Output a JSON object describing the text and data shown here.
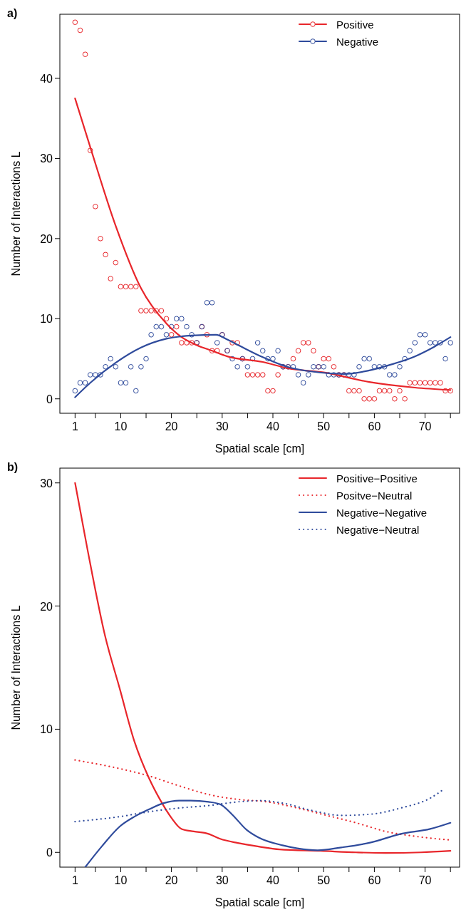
{
  "chart_data": [
    {
      "type": "scatter",
      "title": "a)",
      "xlabel": "Spatial scale [cm]",
      "ylabel": "Number of Interactions L",
      "xlim": [
        -2,
        76.8
      ],
      "ylim": [
        -1.8,
        48
      ],
      "xticks": [
        1,
        {
          "value": 5,
          "label": null
        },
        10,
        {
          "value": 15,
          "label": null
        },
        20,
        {
          "value": 25,
          "label": null
        },
        30,
        {
          "value": 35,
          "label": null
        },
        40,
        {
          "value": 45,
          "label": null
        },
        50,
        {
          "value": 55,
          "label": null
        },
        60,
        {
          "value": 65,
          "label": null
        },
        70,
        {
          "value": 75,
          "label": null
        }
      ],
      "yticks": [
        0,
        10,
        20,
        30,
        40
      ],
      "legend": "top right",
      "grid": false,
      "x": [
        1,
        2,
        3,
        4,
        5,
        6,
        7,
        8,
        9,
        10,
        11,
        12,
        13,
        14,
        15,
        16,
        17,
        18,
        19,
        20,
        21,
        22,
        23,
        24,
        25,
        26,
        27,
        28,
        29,
        30,
        31,
        32,
        33,
        34,
        35,
        36,
        37,
        38,
        39,
        40,
        41,
        42,
        43,
        44,
        45,
        46,
        47,
        48,
        49,
        50,
        51,
        52,
        53,
        54,
        55,
        56,
        57,
        58,
        59,
        60,
        61,
        62,
        63,
        64,
        65,
        66,
        67,
        68,
        69,
        70,
        71,
        72,
        73,
        74,
        75
      ],
      "series": [
        {
          "name": "Positive",
          "color": "#e8262b",
          "marker": "circle",
          "values": [
            47,
            46,
            43,
            31,
            24,
            20,
            18,
            15,
            17,
            14,
            14,
            14,
            14,
            11,
            11,
            11,
            11,
            11,
            10,
            8,
            9,
            7,
            7,
            7,
            7,
            9,
            8,
            6,
            6,
            8,
            6,
            7,
            7,
            5,
            3,
            3,
            3,
            3,
            1,
            1,
            3,
            4,
            4,
            5,
            6,
            7,
            7,
            6,
            4,
            5,
            5,
            4,
            3,
            3,
            1,
            1,
            1,
            0,
            0,
            0,
            1,
            1,
            1,
            0,
            1,
            0,
            2,
            2,
            2,
            2,
            2,
            2,
            2,
            1,
            1
          ]
        },
        {
          "name": "Negative",
          "color": "#2f4b9c",
          "marker": "circle",
          "values": [
            1,
            2,
            2,
            3,
            3,
            3,
            4,
            5,
            4,
            2,
            2,
            4,
            1,
            4,
            5,
            8,
            9,
            9,
            8,
            9,
            10,
            10,
            9,
            8,
            7,
            9,
            12,
            12,
            7,
            8,
            6,
            5,
            4,
            5,
            4,
            5,
            7,
            6,
            5,
            5,
            6,
            4,
            4,
            4,
            3,
            2,
            3,
            4,
            4,
            4,
            3,
            3,
            3,
            3,
            3,
            3,
            4,
            5,
            5,
            4,
            4,
            4,
            3,
            3,
            4,
            5,
            6,
            7,
            8,
            8,
            7,
            7,
            7,
            5,
            7
          ]
        },
        {
          "type": "line",
          "color": "#e8262b",
          "line_style": "solid",
          "x": [
            1,
            4,
            9,
            14,
            19,
            22,
            25,
            28,
            31,
            38,
            43,
            50,
            59,
            68,
            75
          ],
          "values": [
            37.5,
            31.4,
            21.6,
            13.8,
            9.4,
            7.7,
            6.7,
            6.0,
            5.3,
            4.6,
            3.8,
            3.3,
            2.1,
            1.4,
            1.1
          ]
        },
        {
          "type": "line",
          "color": "#2f4b9c",
          "line_style": "solid",
          "x": [
            1,
            4,
            9,
            14,
            19,
            24,
            28.8,
            31,
            33.5,
            38,
            42.8,
            50.8,
            54,
            58.7,
            63.4,
            68,
            71.8,
            75
          ],
          "values": [
            0.2,
            2.0,
            4.5,
            6.4,
            7.5,
            7.9,
            8.0,
            7.4,
            6.6,
            5.2,
            4.0,
            3.2,
            3.1,
            3.5,
            4.3,
            5.3,
            6.5,
            7.7
          ]
        }
      ]
    },
    {
      "type": "line",
      "title": "b)",
      "xlabel": "Spatial scale [cm]",
      "ylabel": "Number of Interactions L",
      "xlim": [
        -2,
        76.8
      ],
      "ylim": [
        -1.2,
        31.2
      ],
      "xticks": [
        1,
        {
          "value": 5,
          "label": null
        },
        10,
        {
          "value": 15,
          "label": null
        },
        20,
        {
          "value": 25,
          "label": null
        },
        30,
        {
          "value": 35,
          "label": null
        },
        40,
        {
          "value": 45,
          "label": null
        },
        50,
        {
          "value": 55,
          "label": null
        },
        60,
        {
          "value": 65,
          "label": null
        },
        70,
        {
          "value": 75,
          "label": null
        }
      ],
      "yticks": [
        0,
        10,
        20,
        30
      ],
      "legend": "top right",
      "grid": false,
      "series": [
        {
          "name": "Positive−Positive",
          "color": "#e8262b",
          "line_style": "solid",
          "x": [
            1,
            3.4,
            6.9,
            9.8,
            12.7,
            15.6,
            18,
            20,
            22,
            24.4,
            27.3,
            29.6,
            33.1,
            37.2,
            41.3,
            49.4,
            56.4,
            62.2,
            69.2,
            75
          ],
          "values": [
            30,
            24.7,
            17.6,
            13.3,
            9.0,
            6.0,
            4.1,
            2.8,
            1.9,
            1.7,
            1.5,
            1.1,
            0.76,
            0.47,
            0.24,
            0.12,
            0,
            -0.05,
            0,
            0.12
          ]
        },
        {
          "name": "Positve−Neutral",
          "color": "#e8262b",
          "line_style": "dotted",
          "x": [
            1,
            9.8,
            15.6,
            21.5,
            27.3,
            33.1,
            38.9,
            44.8,
            50.6,
            56.4,
            62.2,
            68.1,
            75
          ],
          "values": [
            7.5,
            6.8,
            6.2,
            5.4,
            4.7,
            4.3,
            4.1,
            3.6,
            3.0,
            2.4,
            1.7,
            1.3,
            1.0
          ]
        },
        {
          "name": "Negative−Negative",
          "color": "#2f4b9c",
          "line_style": "solid",
          "x": [
            3,
            6.3,
            9.8,
            12.7,
            15.6,
            18.5,
            21.5,
            23.8,
            27.3,
            29.6,
            31.9,
            34.9,
            37.2,
            41.9,
            44.8,
            48.8,
            53.5,
            59.3,
            65.2,
            71,
            75
          ],
          "values": [
            -1.2,
            0.5,
            2.1,
            2.9,
            3.5,
            4.0,
            4.2,
            4.2,
            4.1,
            3.9,
            3.1,
            1.8,
            1.2,
            0.57,
            0.33,
            0.17,
            0.4,
            0.8,
            1.5,
            1.9,
            2.4
          ]
        },
        {
          "name": "Negative−Neutral",
          "color": "#2f4b9c",
          "line_style": "dotted",
          "x": [
            1,
            9.8,
            15.6,
            21.5,
            27.3,
            33.1,
            37.8,
            41.9,
            47.7,
            53.5,
            59.3,
            65.2,
            71,
            73.9
          ],
          "values": [
            2.5,
            2.9,
            3.3,
            3.6,
            3.8,
            4.1,
            4.2,
            4.0,
            3.4,
            3.0,
            3.1,
            3.6,
            4.4,
            5.2
          ]
        }
      ]
    }
  ]
}
